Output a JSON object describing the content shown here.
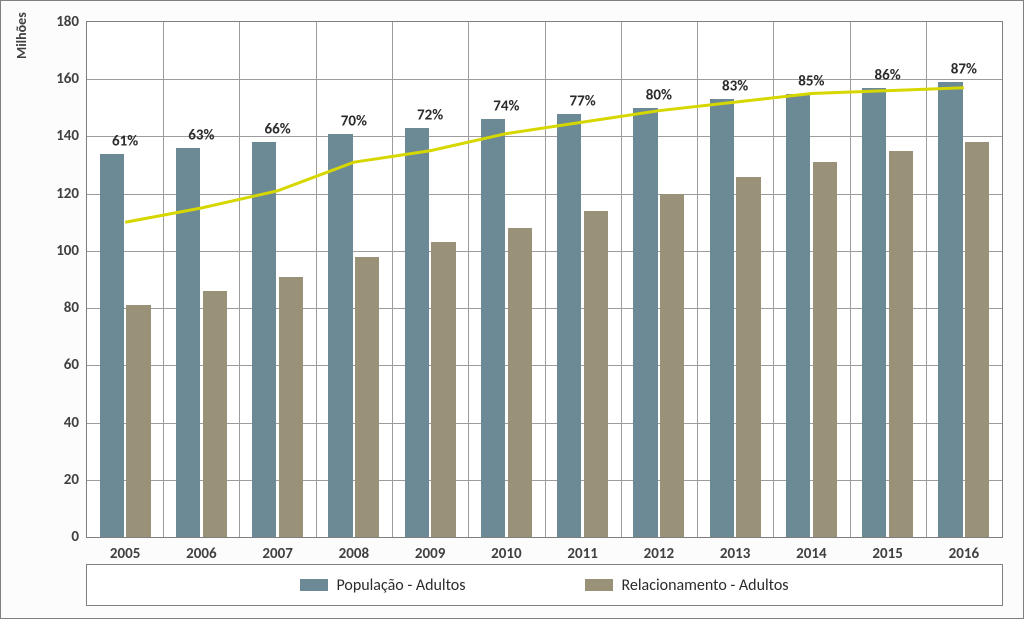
{
  "chart": {
    "type": "bar+line",
    "ylabel": "Milhões",
    "ylabel_fontsize": 14,
    "font_family": "Calibri",
    "background_color": "#fcfcfc",
    "plot_background": "#ffffff",
    "border_color": "#7f7f7f",
    "grid_color": "#9c9c9c",
    "text_color": "#404040",
    "tick_fontsize": 15,
    "ylim": [
      0,
      180
    ],
    "ytick_step": 20,
    "categories": [
      "2005",
      "2006",
      "2007",
      "2008",
      "2009",
      "2010",
      "2011",
      "2012",
      "2013",
      "2014",
      "2015",
      "2016"
    ],
    "series": [
      {
        "key": "populacao",
        "label": "População - Adultos",
        "color": "#6b8a95",
        "values": [
          134,
          136,
          138,
          141,
          143,
          146,
          148,
          150,
          153,
          155,
          157,
          159
        ]
      },
      {
        "key": "relacionamento",
        "label": "Relacionamento - Adultos",
        "color": "#999178",
        "values": [
          81,
          86,
          91,
          98,
          103,
          108,
          114,
          120,
          126,
          131,
          135,
          138
        ]
      }
    ],
    "line": {
      "color": "#d7d700",
      "width": 3,
      "labels": [
        "61%",
        "63%",
        "66%",
        "70%",
        "72%",
        "74%",
        "77%",
        "80%",
        "83%",
        "85%",
        "86%",
        "87%"
      ],
      "values": [
        110,
        115,
        121,
        131,
        135,
        141,
        145,
        149,
        152,
        155,
        156,
        157
      ]
    },
    "bar_width_ratio": 0.32,
    "bar_gap_ratio": 0.03,
    "label_fontsize": 15
  },
  "legend": {
    "items": [
      {
        "label": "População - Adultos",
        "color": "#6b8a95"
      },
      {
        "label": "Relacionamento - Adultos",
        "color": "#999178"
      }
    ]
  }
}
